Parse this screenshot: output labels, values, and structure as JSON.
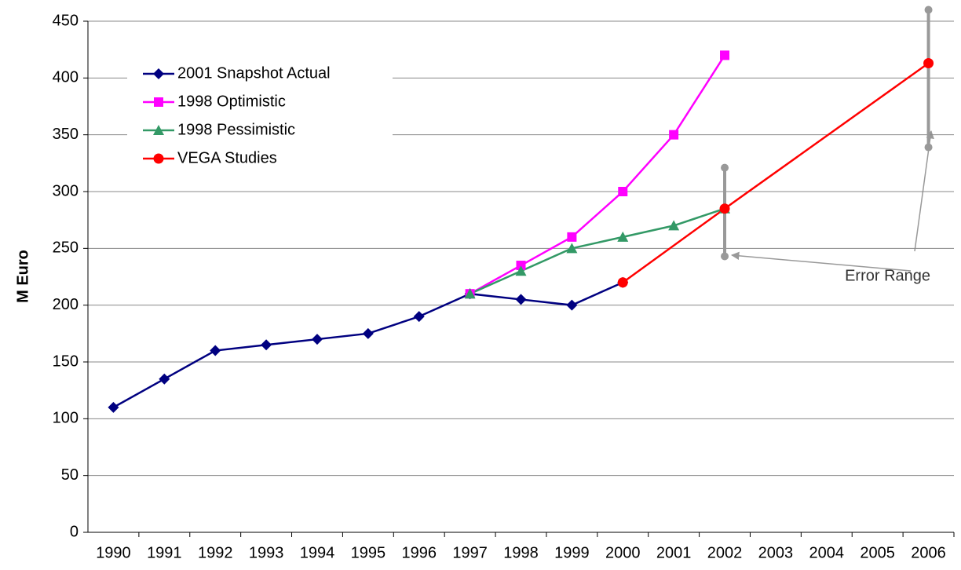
{
  "chart_data": {
    "type": "line",
    "y_label": "M Euro",
    "categories": [
      "1990",
      "1991",
      "1992",
      "1993",
      "1994",
      "1995",
      "1996",
      "1997",
      "1998",
      "1999",
      "2000",
      "2001",
      "2002",
      "2003",
      "2004",
      "2005",
      "2006"
    ],
    "ylim": [
      0,
      450
    ],
    "yticks": [
      0,
      50,
      100,
      150,
      200,
      250,
      300,
      350,
      400,
      450
    ],
    "grid": true,
    "legend": "upper left",
    "series": [
      {
        "name": "2001 Snapshot Actual",
        "color": "#000080",
        "marker": "diamond",
        "values": [
          110,
          135,
          160,
          165,
          170,
          175,
          190,
          210,
          205,
          200,
          220,
          null,
          null,
          null,
          null,
          null,
          null
        ]
      },
      {
        "name": "1998 Optimistic",
        "color": "#ff00ff",
        "marker": "square",
        "values": [
          null,
          null,
          null,
          null,
          null,
          null,
          null,
          210,
          235,
          260,
          300,
          350,
          420,
          null,
          null,
          null,
          null
        ]
      },
      {
        "name": "1998 Pessimistic",
        "color": "#339966",
        "marker": "triangle",
        "values": [
          null,
          null,
          null,
          null,
          null,
          null,
          null,
          210,
          230,
          250,
          260,
          270,
          285,
          null,
          null,
          null,
          null
        ]
      },
      {
        "name": "VEGA Studies",
        "color": "#ff0000",
        "marker": "circle",
        "connect_gaps": true,
        "values": [
          null,
          null,
          null,
          null,
          null,
          null,
          null,
          null,
          null,
          null,
          220,
          null,
          285,
          null,
          null,
          null,
          413
        ],
        "error_minus": [
          null,
          null,
          null,
          null,
          null,
          null,
          null,
          null,
          null,
          null,
          null,
          null,
          42,
          null,
          null,
          null,
          74
        ],
        "error_plus": [
          null,
          null,
          null,
          null,
          null,
          null,
          null,
          null,
          null,
          null,
          null,
          null,
          36,
          null,
          null,
          null,
          47
        ],
        "error_color": "#999999"
      }
    ],
    "annotation": "Error Range"
  }
}
